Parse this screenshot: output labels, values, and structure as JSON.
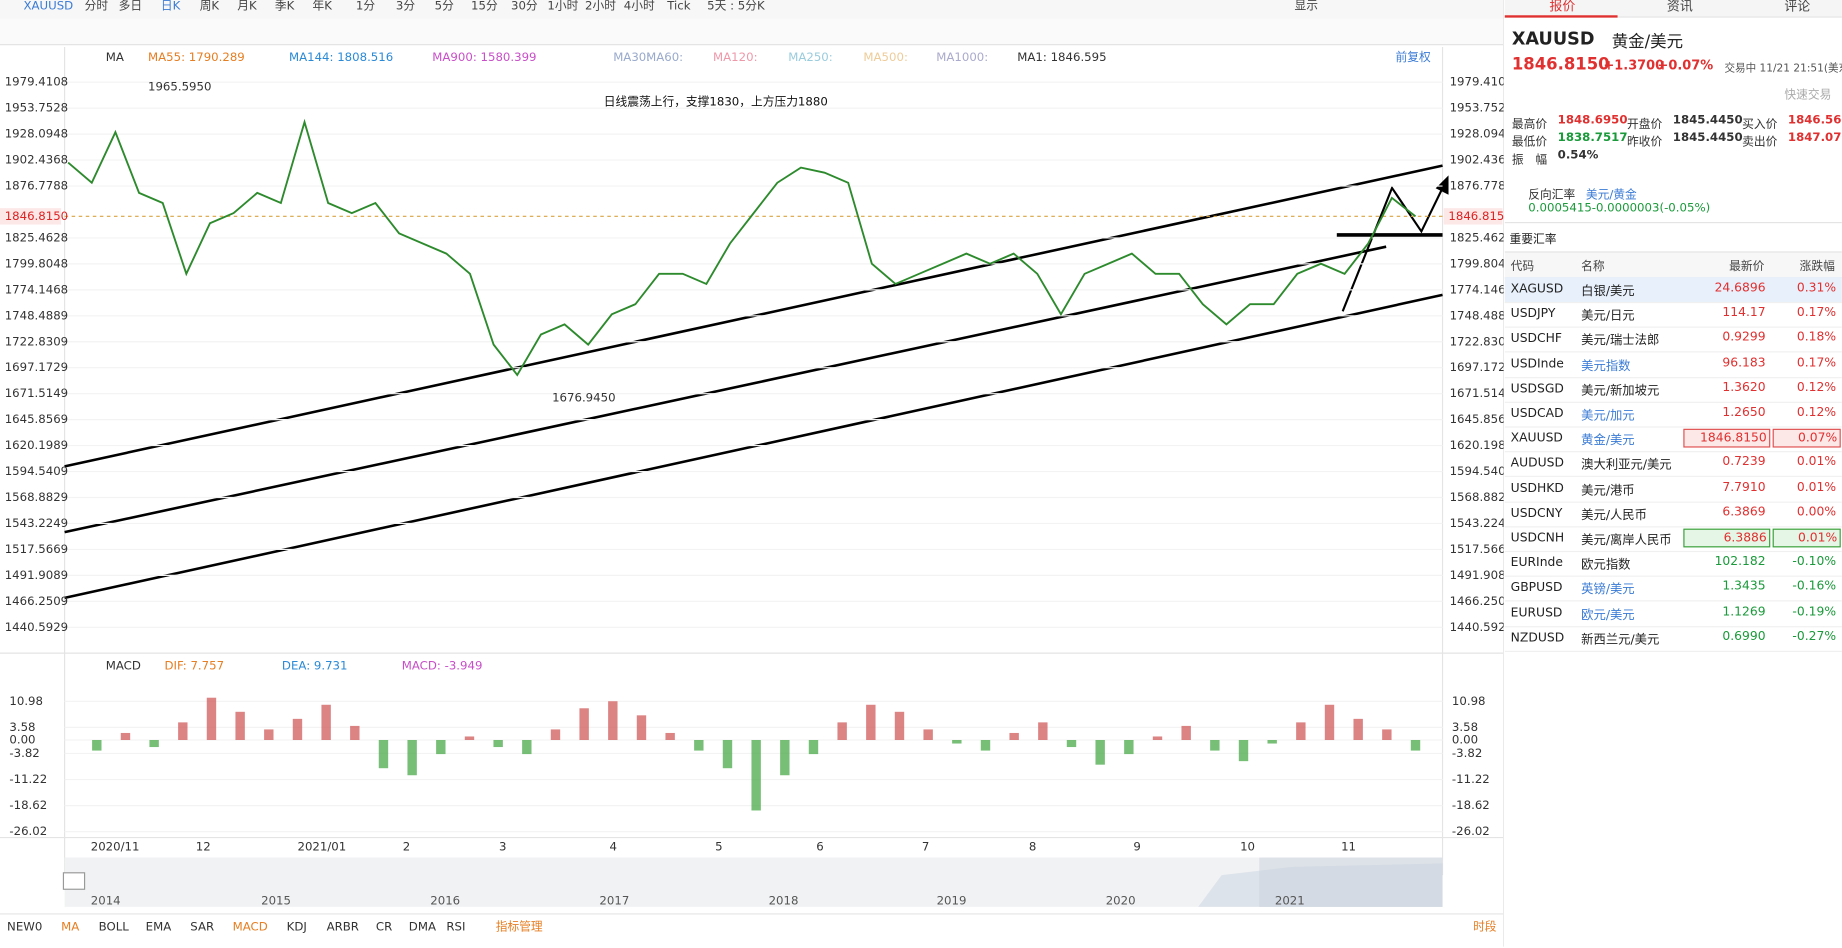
{
  "toolbar": {
    "items": [
      "XAUUSD",
      "分时",
      "多日",
      "日K",
      "周K",
      "月K",
      "季K",
      "年K",
      "1分",
      "3分",
      "5分",
      "15分",
      "30分",
      "1小时",
      "2小时",
      "4小时",
      "Tick",
      "5天 : 5分K"
    ],
    "display": "显示"
  },
  "chart": {
    "ma_legend": [
      "MA",
      "MA55: 1790.289",
      "MA144: 1808.516",
      "MA900: 1580.399",
      "MA30:",
      "MA60:",
      "MA120:",
      "MA250:",
      "MA500:",
      "MA1000:",
      "MA1: 1846.595"
    ],
    "restore": "前复权",
    "annotation": "日线震荡上行，支撑1830，上方压力1880",
    "high_label": "1965.5950",
    "low_label": "1676.9450",
    "current_price": {
      "value": 1846.815,
      "label": "1846.8150"
    },
    "ylim": [
      1416.2,
      1991.0
    ],
    "yticks": [
      1979.4108,
      1953.7528,
      1928.0948,
      1902.4368,
      1876.7788,
      1825.4628,
      1799.8048,
      1774.1468,
      1748.4889,
      1722.8309,
      1697.1729,
      1671.5149,
      1645.8569,
      1620.1989,
      1594.5409,
      1568.8829,
      1543.2249,
      1517.5669,
      1491.9089,
      1466.2509,
      1440.5929
    ],
    "closes": [
      1900,
      1880,
      1930,
      1870,
      1860,
      1790,
      1840,
      1850,
      1870,
      1860,
      1940,
      1860,
      1850,
      1860,
      1830,
      1820,
      1810,
      1790,
      1720,
      1690,
      1730,
      1740,
      1720,
      1750,
      1760,
      1790,
      1790,
      1780,
      1820,
      1850,
      1880,
      1895,
      1890,
      1880,
      1800,
      1780,
      1790,
      1800,
      1810,
      1800,
      1810,
      1790,
      1750,
      1790,
      1800,
      1810,
      1790,
      1790,
      1760,
      1740,
      1760,
      1760,
      1790,
      1800,
      1790,
      1820,
      1865,
      1846.815
    ],
    "macd_legend": [
      "MACD",
      "DIF: 7.757",
      "DEA: 9.731",
      "MACD: -3.949"
    ],
    "macd_ylim": [
      -28.35,
      16.65
    ],
    "macd_yticks": [
      10.98,
      3.58,
      {
        "value": 0,
        "label": "0.00"
      },
      -3.82,
      -11.22,
      -18.62,
      -26.02
    ],
    "macd_hist": [
      0,
      -3,
      2,
      -2,
      5,
      12,
      8,
      3,
      6,
      10,
      4,
      -8,
      -10,
      -4,
      1,
      -2,
      -4,
      3,
      9,
      11,
      7,
      2,
      -3,
      -8,
      -20,
      -10,
      -4,
      5,
      10,
      8,
      3,
      -1,
      -3,
      2,
      5,
      -2,
      -7,
      -4,
      1,
      4,
      -3,
      -6,
      -1,
      5,
      10,
      6,
      3,
      -3
    ],
    "dates": [
      "2020/11",
      "12",
      "2021/01",
      "2",
      "3",
      "4",
      "5",
      "6",
      "7",
      "8",
      "9",
      "10",
      "11"
    ],
    "years": [
      "2014",
      "2015",
      "2016",
      "2017",
      "2018",
      "2019",
      "2020",
      "2021"
    ]
  },
  "indicator_tabs": [
    "NEW0",
    "MA",
    "BOLL",
    "EMA",
    "SAR",
    "MACD",
    "KDJ",
    "ARBR",
    "CR",
    "DMA",
    "RSI",
    "指标管理"
  ],
  "session": "时段",
  "panel": {
    "tabs": [
      "报价",
      "资讯",
      "评论"
    ],
    "symbol": "XAUUSD",
    "name": "黄金/美元",
    "price": "1846.8150",
    "change": "+1.3700",
    "change_pct": "+0.07%",
    "status": "交易中 11/21 21:51(美东",
    "quick_trade": "快速交易",
    "stats": [
      [
        "最高价",
        "1848.6950"
      ],
      [
        "开盘价",
        "1845.4450"
      ],
      [
        "买入价",
        "1846.5600"
      ],
      [
        "最低价",
        "1838.7517"
      ],
      [
        "昨收价",
        "1845.4450"
      ],
      [
        "卖出价",
        "1847.0700"
      ],
      [
        "振　幅",
        "0.54%"
      ]
    ],
    "reverse": {
      "label": "反向汇率",
      "pair": "美元/黄金",
      "value": "0.0005415",
      "change": "-0.0000003(-0.05%)"
    },
    "section": "重要汇率",
    "headers": [
      "代码",
      "名称",
      "最新价",
      "涨跌幅"
    ],
    "rows": [
      [
        "XAGUSD",
        "白银/美元",
        "24.6896",
        "0.31%"
      ],
      [
        "USDJPY",
        "美元/日元",
        "114.17",
        "0.17%"
      ],
      [
        "USDCHF",
        "美元/瑞士法郎",
        "0.9299",
        "0.18%"
      ],
      [
        "USDInde",
        "美元指数",
        "96.183",
        "0.17%"
      ],
      [
        "USDSGD",
        "美元/新加坡元",
        "1.3620",
        "0.12%"
      ],
      [
        "USDCAD",
        "美元/加元",
        "1.2650",
        "0.12%"
      ],
      [
        "XAUUSD",
        "黄金/美元",
        "1846.8150",
        "0.07%"
      ],
      [
        "AUDUSD",
        "澳大利亚元/美元",
        "0.7239",
        "0.01%"
      ],
      [
        "USDHKD",
        "美元/港币",
        "7.7910",
        "0.01%"
      ],
      [
        "USDCNY",
        "美元/人民币",
        "6.3869",
        "0.00%"
      ],
      [
        "USDCNH",
        "美元/离岸人民币",
        "6.3886",
        "0.01%"
      ],
      [
        "EURInde",
        "欧元指数",
        "102.182",
        "-0.10%"
      ],
      [
        "GBPUSD",
        "英镑/美元",
        "1.3435",
        "-0.16%"
      ],
      [
        "EURUSD",
        "欧元/美元",
        "1.1269",
        "-0.19%"
      ],
      [
        "NZDUSD",
        "新西兰元/美元",
        "0.6990",
        "-0.27%"
      ]
    ]
  }
}
